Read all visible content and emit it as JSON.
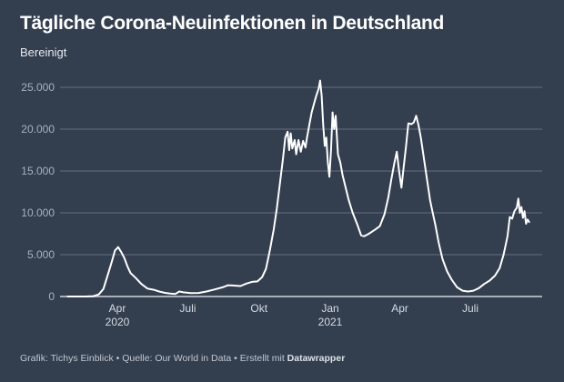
{
  "title": "Tägliche Corona-Neuinfektionen in Deutschland",
  "subtitle": "Bereinigt",
  "footer": {
    "prefix": "Grafik: Tichys Einblick • Quelle: Our World in Data • Erstellt mit ",
    "brand": "Datawrapper"
  },
  "colors": {
    "background": "#333e4f",
    "line": "#ffffff",
    "grid": "#5b6576",
    "baseline": "#a9afb8"
  },
  "chart_data": {
    "type": "line",
    "title": "Tägliche Corona-Neuinfektionen in Deutschland",
    "subtitle": "Bereinigt",
    "xlabel": "",
    "ylabel": "",
    "ylim": [
      0,
      25000
    ],
    "xlim": [
      "2020-01-15",
      "2021-09-30"
    ],
    "grid": true,
    "legend": "none",
    "yticks": [
      {
        "value": 0,
        "label": "0"
      },
      {
        "value": 5000,
        "label": "5.000"
      },
      {
        "value": 10000,
        "label": "10.000"
      },
      {
        "value": 15000,
        "label": "15.000"
      },
      {
        "value": 20000,
        "label": "20.000"
      },
      {
        "value": 25000,
        "label": "25.000"
      }
    ],
    "xticks": [
      {
        "date": "2020-04-01",
        "label": "Apr",
        "sub": "2020"
      },
      {
        "date": "2020-07-01",
        "label": "Juli",
        "sub": ""
      },
      {
        "date": "2020-10-01",
        "label": "Okt",
        "sub": ""
      },
      {
        "date": "2021-01-01",
        "label": "Jan",
        "sub": "2021"
      },
      {
        "date": "2021-04-01",
        "label": "Apr",
        "sub": ""
      },
      {
        "date": "2021-07-01",
        "label": "Juli",
        "sub": ""
      }
    ],
    "series": [
      {
        "name": "Neuinfektionen (bereinigt)",
        "points": [
          [
            "2020-01-28",
            0
          ],
          [
            "2020-02-20",
            0
          ],
          [
            "2020-03-01",
            40
          ],
          [
            "2020-03-08",
            250
          ],
          [
            "2020-03-14",
            900
          ],
          [
            "2020-03-20",
            2700
          ],
          [
            "2020-03-25",
            4200
          ],
          [
            "2020-03-29",
            5500
          ],
          [
            "2020-04-02",
            5900
          ],
          [
            "2020-04-06",
            5300
          ],
          [
            "2020-04-10",
            4600
          ],
          [
            "2020-04-14",
            3600
          ],
          [
            "2020-04-18",
            2800
          ],
          [
            "2020-04-25",
            2200
          ],
          [
            "2020-05-02",
            1500
          ],
          [
            "2020-05-10",
            950
          ],
          [
            "2020-05-18",
            800
          ],
          [
            "2020-05-25",
            600
          ],
          [
            "2020-06-01",
            450
          ],
          [
            "2020-06-08",
            350
          ],
          [
            "2020-06-15",
            300
          ],
          [
            "2020-06-20",
            600
          ],
          [
            "2020-06-25",
            500
          ],
          [
            "2020-07-05",
            400
          ],
          [
            "2020-07-15",
            420
          ],
          [
            "2020-07-25",
            600
          ],
          [
            "2020-08-05",
            850
          ],
          [
            "2020-08-15",
            1100
          ],
          [
            "2020-08-22",
            1350
          ],
          [
            "2020-08-30",
            1300
          ],
          [
            "2020-09-07",
            1250
          ],
          [
            "2020-09-15",
            1550
          ],
          [
            "2020-09-22",
            1750
          ],
          [
            "2020-09-29",
            1800
          ],
          [
            "2020-10-05",
            2300
          ],
          [
            "2020-10-10",
            3300
          ],
          [
            "2020-10-15",
            5500
          ],
          [
            "2020-10-20",
            8000
          ],
          [
            "2020-10-24",
            10500
          ],
          [
            "2020-10-28",
            13500
          ],
          [
            "2020-11-01",
            16500
          ],
          [
            "2020-11-04",
            19000
          ],
          [
            "2020-11-07",
            19700
          ],
          [
            "2020-11-09",
            17500
          ],
          [
            "2020-11-11",
            19500
          ],
          [
            "2020-11-13",
            17700
          ],
          [
            "2020-11-16",
            18700
          ],
          [
            "2020-11-18",
            17000
          ],
          [
            "2020-11-21",
            18700
          ],
          [
            "2020-11-24",
            17300
          ],
          [
            "2020-11-27",
            18600
          ],
          [
            "2020-11-30",
            17800
          ],
          [
            "2020-12-02",
            19000
          ],
          [
            "2020-12-05",
            20500
          ],
          [
            "2020-12-08",
            22000
          ],
          [
            "2020-12-11",
            23000
          ],
          [
            "2020-12-14",
            24000
          ],
          [
            "2020-12-17",
            24800
          ],
          [
            "2020-12-19",
            25800
          ],
          [
            "2020-12-21",
            24000
          ],
          [
            "2020-12-23",
            20500
          ],
          [
            "2020-12-25",
            18000
          ],
          [
            "2020-12-27",
            19000
          ],
          [
            "2020-12-29",
            16000
          ],
          [
            "2020-12-31",
            14300
          ],
          [
            "2021-01-02",
            17500
          ],
          [
            "2021-01-04",
            22000
          ],
          [
            "2021-01-06",
            20000
          ],
          [
            "2021-01-08",
            21600
          ],
          [
            "2021-01-11",
            17000
          ],
          [
            "2021-01-14",
            16000
          ],
          [
            "2021-01-17",
            14500
          ],
          [
            "2021-01-21",
            13000
          ],
          [
            "2021-01-25",
            11500
          ],
          [
            "2021-01-30",
            10000
          ],
          [
            "2021-02-05",
            8600
          ],
          [
            "2021-02-10",
            7300
          ],
          [
            "2021-02-14",
            7200
          ],
          [
            "2021-02-20",
            7500
          ],
          [
            "2021-02-28",
            8000
          ],
          [
            "2021-03-06",
            8400
          ],
          [
            "2021-03-12",
            9800
          ],
          [
            "2021-03-17",
            11800
          ],
          [
            "2021-03-21",
            14000
          ],
          [
            "2021-03-25",
            16000
          ],
          [
            "2021-03-28",
            17300
          ],
          [
            "2021-03-31",
            15000
          ],
          [
            "2021-04-03",
            13000
          ],
          [
            "2021-04-06",
            15500
          ],
          [
            "2021-04-09",
            18000
          ],
          [
            "2021-04-12",
            20700
          ],
          [
            "2021-04-16",
            20600
          ],
          [
            "2021-04-19",
            20800
          ],
          [
            "2021-04-22",
            21600
          ],
          [
            "2021-04-25",
            20500
          ],
          [
            "2021-04-28",
            19000
          ],
          [
            "2021-05-02",
            16500
          ],
          [
            "2021-05-06",
            14000
          ],
          [
            "2021-05-10",
            11500
          ],
          [
            "2021-05-13",
            10200
          ],
          [
            "2021-05-17",
            8500
          ],
          [
            "2021-05-21",
            6500
          ],
          [
            "2021-05-26",
            4500
          ],
          [
            "2021-06-01",
            3000
          ],
          [
            "2021-06-07",
            2000
          ],
          [
            "2021-06-14",
            1100
          ],
          [
            "2021-06-21",
            700
          ],
          [
            "2021-06-28",
            600
          ],
          [
            "2021-07-05",
            700
          ],
          [
            "2021-07-12",
            1000
          ],
          [
            "2021-07-19",
            1500
          ],
          [
            "2021-07-26",
            1900
          ],
          [
            "2021-08-02",
            2500
          ],
          [
            "2021-08-08",
            3400
          ],
          [
            "2021-08-13",
            5000
          ],
          [
            "2021-08-18",
            7200
          ],
          [
            "2021-08-21",
            9500
          ],
          [
            "2021-08-24",
            9300
          ],
          [
            "2021-08-27",
            10200
          ],
          [
            "2021-08-30",
            10600
          ],
          [
            "2021-09-01",
            11700
          ],
          [
            "2021-09-03",
            10000
          ],
          [
            "2021-09-05",
            10700
          ],
          [
            "2021-09-07",
            9400
          ],
          [
            "2021-09-09",
            10200
          ],
          [
            "2021-09-11",
            8700
          ],
          [
            "2021-09-13",
            9200
          ],
          [
            "2021-09-15",
            8900
          ]
        ]
      }
    ]
  }
}
